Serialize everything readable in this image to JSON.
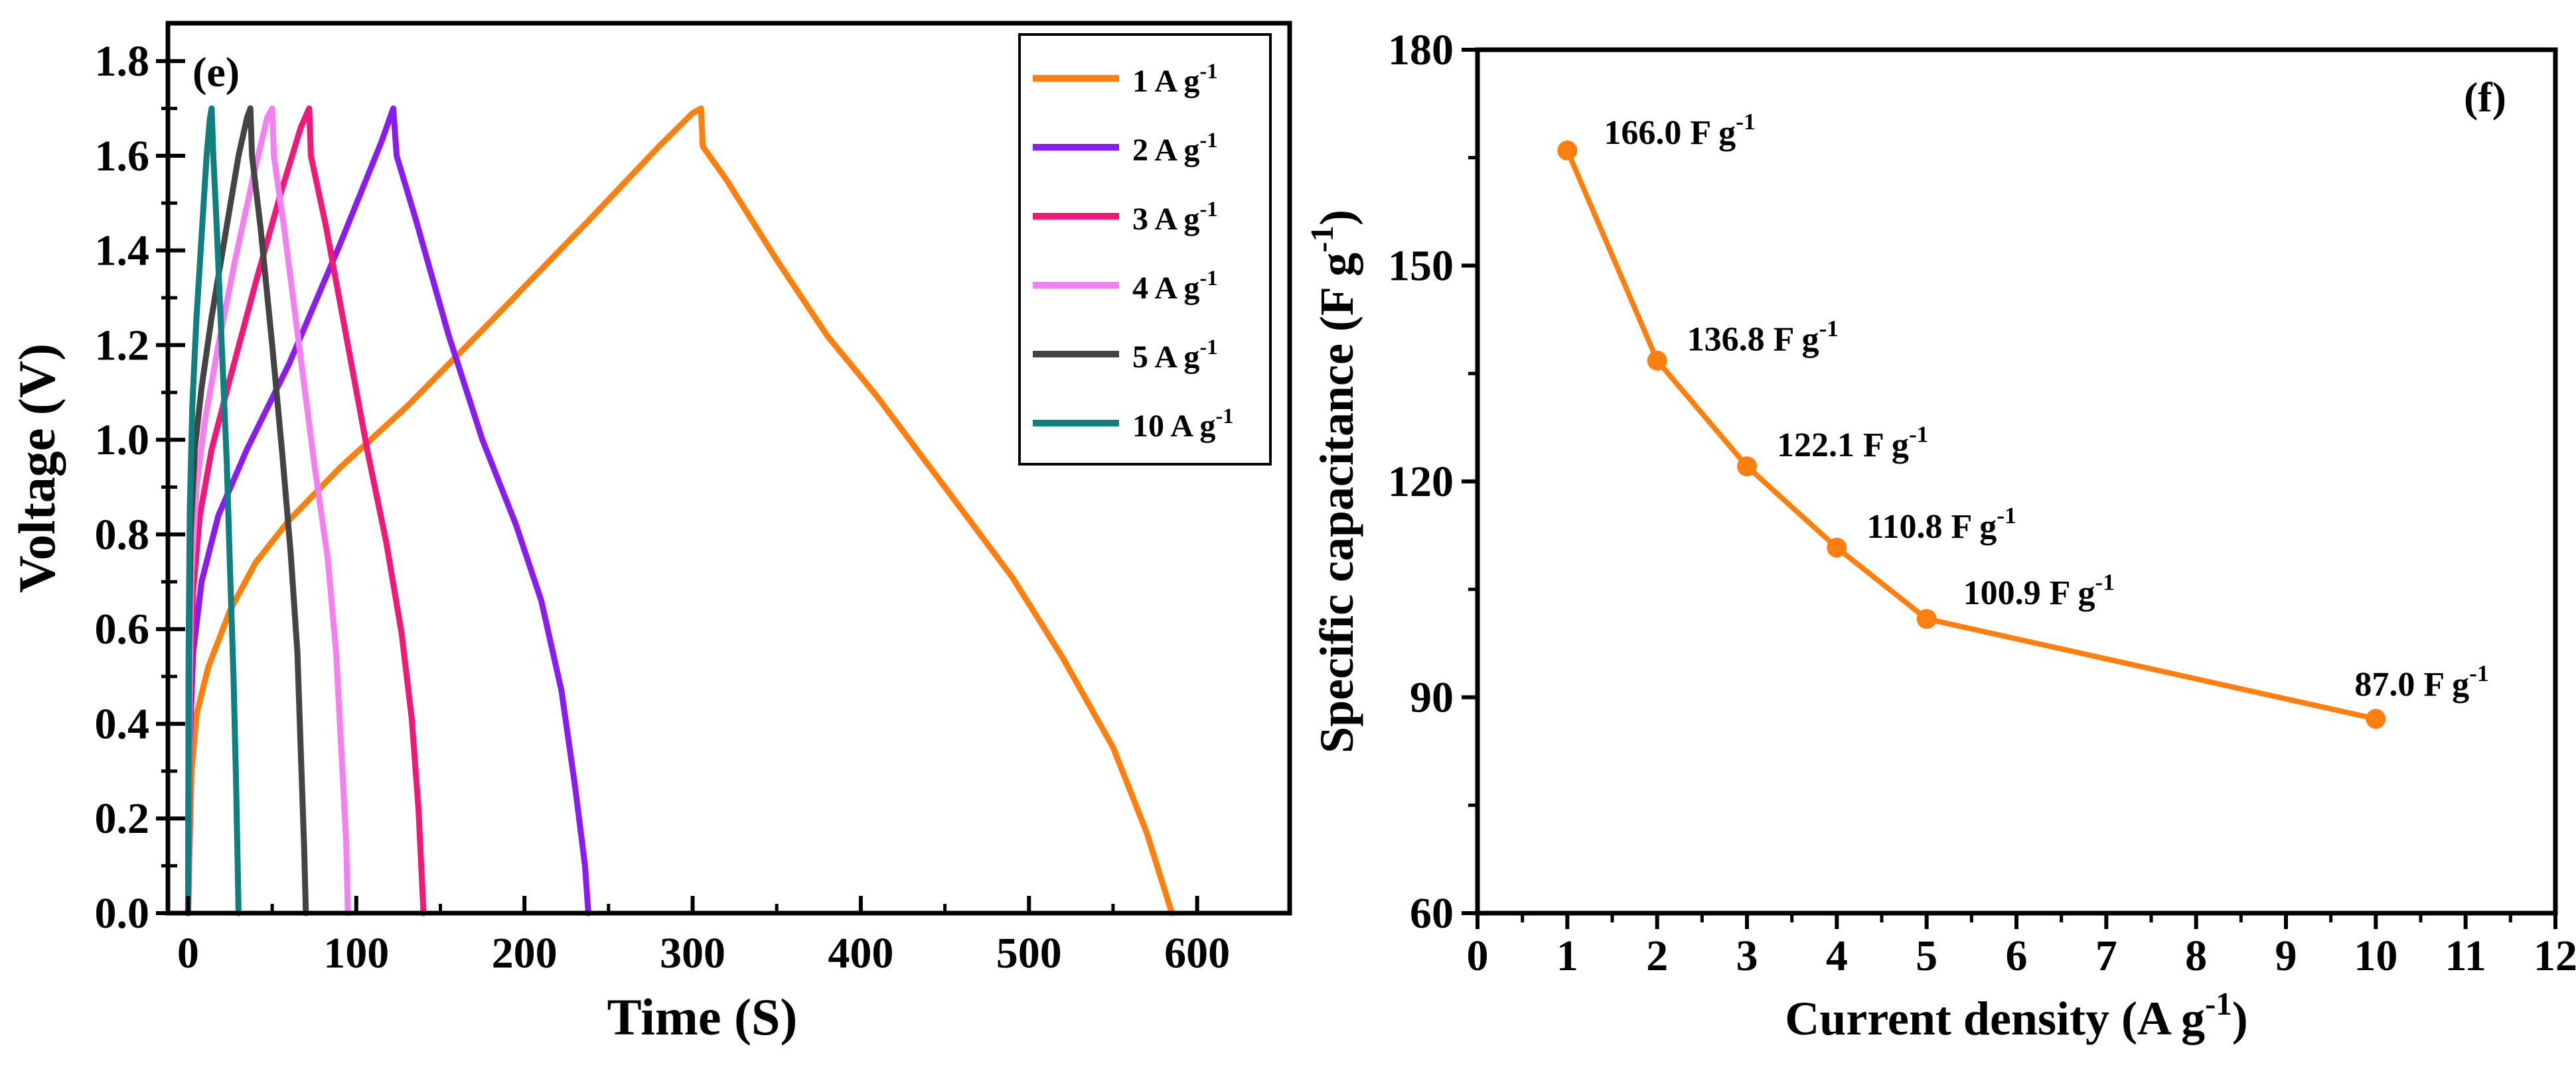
{
  "chart_data": [
    {
      "panel": "(e)",
      "type": "line",
      "xlabel": "Time (S)",
      "ylabel": "Voltage (V)",
      "xlim": [
        -12,
        655
      ],
      "ylim": [
        0,
        1.88
      ],
      "xticks": [
        "0",
        "100",
        "200",
        "300",
        "400",
        "500",
        "600"
      ],
      "yticks": [
        "0.0",
        "0.2",
        "0.4",
        "0.6",
        "0.8",
        "1.0",
        "1.2",
        "1.4",
        "1.6",
        "1.8"
      ],
      "series": [
        {
          "name": "1 A g",
          "superscript": "-1",
          "color": "#ff7f0e",
          "charge": [
            [
              0,
              0
            ],
            [
              2,
              0.3
            ],
            [
              5,
              0.42
            ],
            [
              12,
              0.52
            ],
            [
              25,
              0.64
            ],
            [
              40,
              0.74
            ],
            [
              60,
              0.83
            ],
            [
              90,
              0.94
            ],
            [
              130,
              1.07
            ],
            [
              180,
              1.25
            ],
            [
              240,
              1.47
            ],
            [
              280,
              1.62
            ],
            [
              300,
              1.69
            ],
            [
              305,
              1.7
            ]
          ],
          "discharge": [
            [
              305,
              1.7
            ],
            [
              306,
              1.62
            ],
            [
              320,
              1.55
            ],
            [
              350,
              1.38
            ],
            [
              380,
              1.22
            ],
            [
              410,
              1.09
            ],
            [
              450,
              0.9
            ],
            [
              490,
              0.71
            ],
            [
              520,
              0.54
            ],
            [
              550,
              0.35
            ],
            [
              570,
              0.17
            ],
            [
              585,
              0
            ]
          ]
        },
        {
          "name": "2 A g",
          "superscript": "-1",
          "color": "#8a1cf0",
          "charge": [
            [
              0,
              0
            ],
            [
              1,
              0.36
            ],
            [
              3,
              0.55
            ],
            [
              8,
              0.7
            ],
            [
              18,
              0.84
            ],
            [
              35,
              0.98
            ],
            [
              60,
              1.16
            ],
            [
              90,
              1.41
            ],
            [
              115,
              1.63
            ],
            [
              122,
              1.7
            ]
          ],
          "discharge": [
            [
              122,
              1.7
            ],
            [
              124,
              1.6
            ],
            [
              135,
              1.47
            ],
            [
              155,
              1.22
            ],
            [
              175,
              1.0
            ],
            [
              195,
              0.82
            ],
            [
              210,
              0.66
            ],
            [
              222,
              0.47
            ],
            [
              230,
              0.27
            ],
            [
              236,
              0.1
            ],
            [
              238,
              0
            ]
          ]
        },
        {
          "name": "3 A g",
          "superscript": "-1",
          "color": "#f0197a",
          "charge": [
            [
              0,
              0
            ],
            [
              1,
              0.45
            ],
            [
              3,
              0.68
            ],
            [
              7,
              0.84
            ],
            [
              14,
              0.98
            ],
            [
              25,
              1.13
            ],
            [
              40,
              1.33
            ],
            [
              55,
              1.52
            ],
            [
              67,
              1.66
            ],
            [
              72,
              1.7
            ]
          ],
          "discharge": [
            [
              72,
              1.7
            ],
            [
              73,
              1.6
            ],
            [
              82,
              1.45
            ],
            [
              95,
              1.2
            ],
            [
              107,
              0.97
            ],
            [
              118,
              0.78
            ],
            [
              127,
              0.59
            ],
            [
              133,
              0.41
            ],
            [
              137,
              0.22
            ],
            [
              140,
              0
            ]
          ]
        },
        {
          "name": "4 A g",
          "superscript": "-1",
          "color": "#f47ff0",
          "charge": [
            [
              0,
              0
            ],
            [
              1,
              0.5
            ],
            [
              2,
              0.72
            ],
            [
              5,
              0.9
            ],
            [
              10,
              1.04
            ],
            [
              18,
              1.2
            ],
            [
              28,
              1.38
            ],
            [
              39,
              1.56
            ],
            [
              47,
              1.68
            ],
            [
              50,
              1.7
            ]
          ],
          "discharge": [
            [
              50,
              1.7
            ],
            [
              51,
              1.6
            ],
            [
              57,
              1.45
            ],
            [
              66,
              1.2
            ],
            [
              75,
              0.95
            ],
            [
              83,
              0.75
            ],
            [
              88,
              0.55
            ],
            [
              91,
              0.35
            ],
            [
              94,
              0.15
            ],
            [
              95,
              0
            ]
          ]
        },
        {
          "name": "5 A g",
          "superscript": "-1",
          "color": "#444444",
          "charge": [
            [
              0,
              0
            ],
            [
              0.5,
              0.55
            ],
            [
              1.5,
              0.8
            ],
            [
              4,
              0.98
            ],
            [
              8,
              1.11
            ],
            [
              14,
              1.26
            ],
            [
              22,
              1.43
            ],
            [
              30,
              1.6
            ],
            [
              35,
              1.68
            ],
            [
              37,
              1.7
            ]
          ],
          "discharge": [
            [
              37,
              1.7
            ],
            [
              38,
              1.6
            ],
            [
              43,
              1.45
            ],
            [
              50,
              1.2
            ],
            [
              56,
              0.97
            ],
            [
              61,
              0.76
            ],
            [
              65,
              0.55
            ],
            [
              67,
              0.34
            ],
            [
              69,
              0.14
            ],
            [
              70,
              0
            ]
          ]
        },
        {
          "name": "10 A g",
          "superscript": "-1",
          "color": "#0f7f7f",
          "charge": [
            [
              0,
              0
            ],
            [
              0.3,
              0.55
            ],
            [
              1,
              0.85
            ],
            [
              2.5,
              1.07
            ],
            [
              5,
              1.26
            ],
            [
              8,
              1.43
            ],
            [
              11,
              1.6
            ],
            [
              13,
              1.68
            ],
            [
              14,
              1.7
            ]
          ],
          "discharge": [
            [
              14,
              1.7
            ],
            [
              15,
              1.6
            ],
            [
              17,
              1.45
            ],
            [
              20,
              1.2
            ],
            [
              23,
              0.95
            ],
            [
              25,
              0.72
            ],
            [
              27,
              0.5
            ],
            [
              28.5,
              0.28
            ],
            [
              29.5,
              0.1
            ],
            [
              30,
              0
            ]
          ]
        }
      ]
    },
    {
      "panel": "(f)",
      "type": "line",
      "xlabel": "Current density (A g",
      "xlabel_sup": "-1",
      "xlabel_end": ")",
      "ylabel": "Specific capacitance (F g",
      "ylabel_sup": "-1",
      "ylabel_end": ")",
      "xlim": [
        0,
        12
      ],
      "ylim": [
        60,
        180
      ],
      "xticks": [
        "0",
        "1",
        "2",
        "3",
        "4",
        "5",
        "6",
        "7",
        "8",
        "9",
        "10",
        "11",
        "12"
      ],
      "yticks": [
        "60",
        "90",
        "120",
        "150",
        "180"
      ],
      "color": "#ff7f0e",
      "x": [
        1,
        2,
        3,
        4,
        5,
        10
      ],
      "values": [
        166.0,
        136.8,
        122.1,
        110.8,
        100.9,
        87.0
      ],
      "labels": [
        "166.0 F g",
        "136.8 F g",
        "122.1 F g",
        "110.8 F g",
        "100.9 F g",
        "87.0 F g"
      ],
      "label_sup": "-1"
    }
  ]
}
